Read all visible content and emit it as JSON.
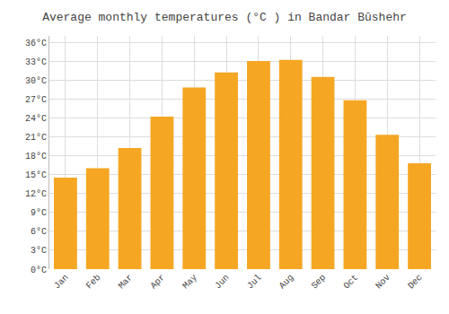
{
  "chart_data": {
    "type": "bar",
    "title": "Average monthly temperatures (°C ) in Bandar Būshehr",
    "categories": [
      "Jan",
      "Feb",
      "Mar",
      "Apr",
      "May",
      "Jun",
      "Jul",
      "Aug",
      "Sep",
      "Oct",
      "Nov",
      "Dec"
    ],
    "values": [
      14.5,
      16.0,
      19.2,
      24.2,
      28.8,
      31.2,
      33.0,
      33.2,
      30.5,
      26.8,
      21.3,
      16.8
    ],
    "color": "#F5A623",
    "ylim": [
      0,
      37
    ],
    "yticks": [
      {
        "value": 0,
        "label": "0°C"
      },
      {
        "value": 3,
        "label": "3°C"
      },
      {
        "value": 6,
        "label": "6°C"
      },
      {
        "value": 9,
        "label": "9°C"
      },
      {
        "value": 12,
        "label": "12°C"
      },
      {
        "value": 15,
        "label": "15°C"
      },
      {
        "value": 18,
        "label": "18°C"
      },
      {
        "value": 21,
        "label": "21°C"
      },
      {
        "value": 24,
        "label": "24°C"
      },
      {
        "value": 27,
        "label": "27°C"
      },
      {
        "value": 30,
        "label": "30°C"
      },
      {
        "value": 33,
        "label": "33°C"
      },
      {
        "value": 36,
        "label": "36°C"
      }
    ],
    "grid": true
  }
}
